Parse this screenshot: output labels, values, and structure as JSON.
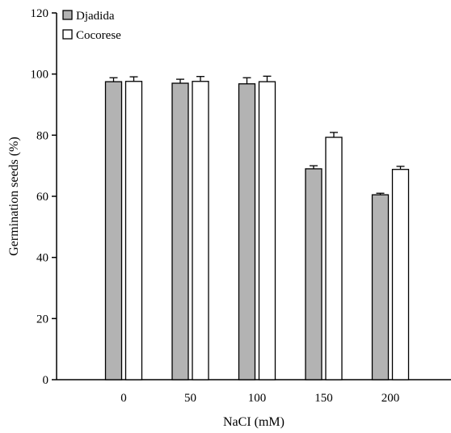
{
  "chart_data": {
    "type": "bar",
    "xlabel": "NaCI (mM)",
    "ylabel": "Germination seeds (%)",
    "categories": [
      "0",
      "50",
      "100",
      "150",
      "200"
    ],
    "ylim": [
      0,
      120
    ],
    "yticks": [
      "0",
      "20",
      "40",
      "60",
      "80",
      "100",
      "120"
    ],
    "grid": false,
    "legend_position": "top-left",
    "series": [
      {
        "name": "Djadida",
        "color": "#b3b3b3",
        "values": [
          97.5,
          97.0,
          96.8,
          69.0,
          60.5
        ],
        "errors": [
          1.3,
          1.3,
          2.0,
          1.0,
          0.5
        ]
      },
      {
        "name": "Cocorese",
        "color": "#ffffff",
        "values": [
          97.6,
          97.6,
          97.5,
          79.3,
          68.8
        ],
        "errors": [
          1.5,
          1.6,
          1.8,
          1.6,
          1.0
        ]
      }
    ]
  }
}
